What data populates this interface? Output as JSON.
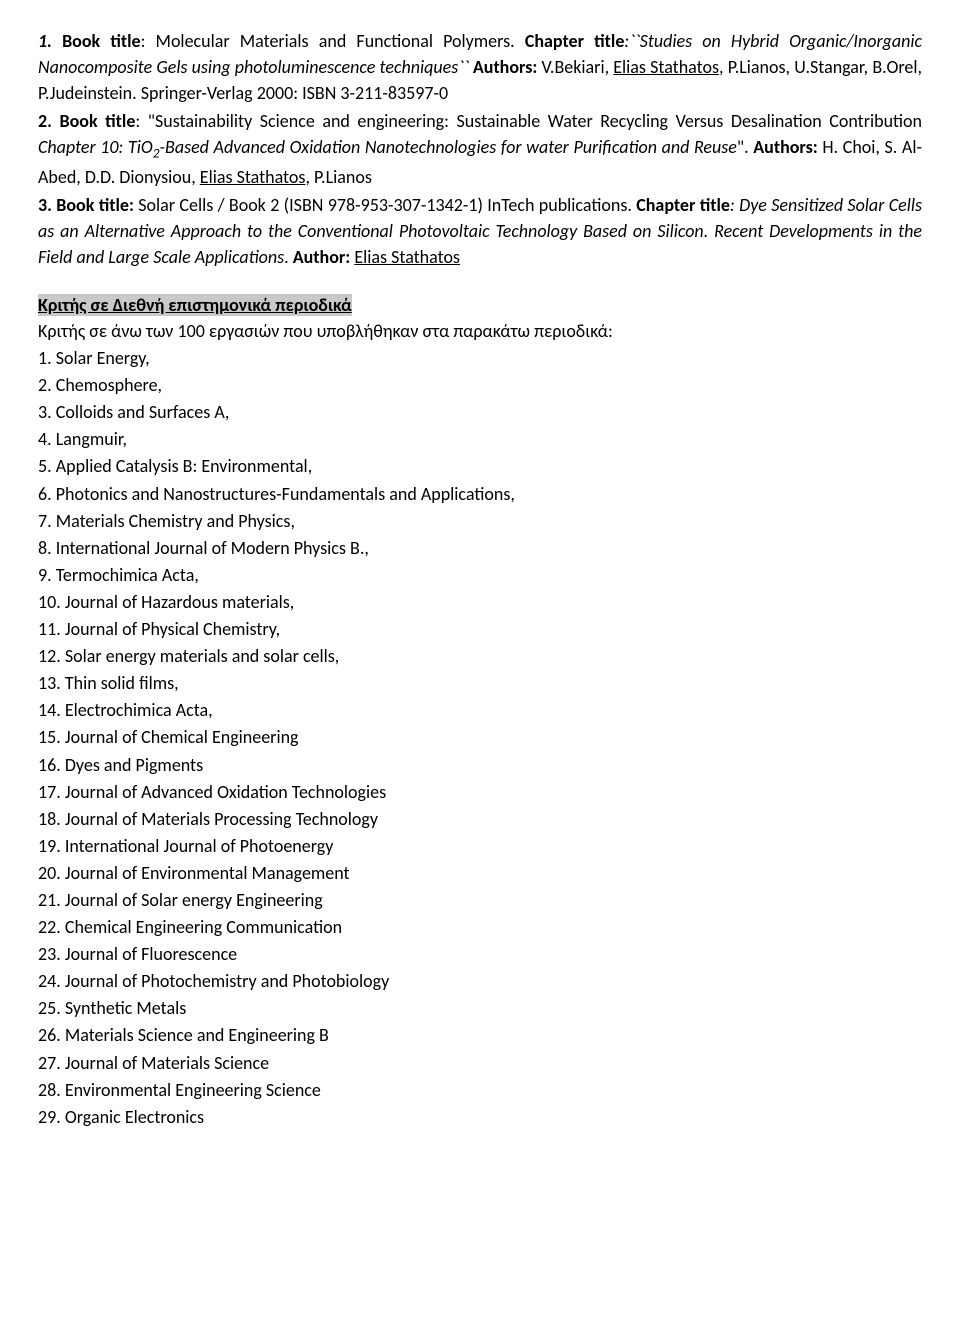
{
  "books": {
    "b1": {
      "num": "1.",
      "bt_label": "Book title",
      "bt_val": ": Molecular Materials and Functional Polymers. ",
      "ct_label": "Chapter title",
      "ct_val": ":``Studies on Hybrid Organic/Inorganic Nanocomposite Gels using photoluminescence  techniques`` ",
      "au_label": "Authors:",
      "au_before": " V.Bekiari, ",
      "au_under": "Elias Stathatos",
      "au_after": ", P.Lianos, U.Stangar, B.Orel, P.Judeinstein. Springer-Verlag 2000: ISBN 3-211-83597-0"
    },
    "b2": {
      "num": "2.",
      "bt_label": "Book title",
      "bt_val": ": \"Sustainability Science and engineering: Sustainable Water Recycling Versus Desalination Contribution ",
      "ct_val_a": "Chapter 10: TiO",
      "ct_sub": "2",
      "ct_val_b": "-Based Advanced Oxidation Nanotechnologies for water Purification and Reuse",
      "au_plain": "\". ",
      "au_label": "Authors:",
      "au_before": " H. Choi, S. Al-Abed, D.D. Dionysiou, ",
      "au_under": "Elias Stathatos",
      "au_after": ", P.Lianos"
    },
    "b3": {
      "num": "3.",
      "bt_label": "Book title:",
      "bt_val": " Solar Cells / Book 2 (ISBN 978-953-307-1342-1) InTech publications. ",
      "ct_label": "Chapter title",
      "ct_val": ": Dye Sensitized Solar Cells as an Alternative Approach to the Conventional Photovoltaic Technology Based on Silicon. Recent Developments in the Field and Large Scale Applications",
      "au_plain": ". ",
      "au_label": "Author:",
      "au_under": "Elias Stathatos"
    }
  },
  "section": {
    "heading": "Κριτής σε Διεθνή επιστημονικά περιοδικά",
    "intro": "Κριτής σε άνω των 100 εργασιών που υποβλήθηκαν στα παρακάτω περιοδικά:"
  },
  "journals": [
    "1. Solar Energy,",
    "2. Chemosphere,",
    "3. Colloids and Surfaces A,",
    "4. Langmuir,",
    "5. Applied Catalysis B: Environmental,",
    "6. Photonics and Nanostructures-Fundamentals and Applications,",
    "7. Materials Chemistry and Physics,",
    "8. International Journal of Modern Physics B.,",
    "9. Termochimica Acta,",
    "10. Journal of Hazardous materials,",
    "11. Journal of Physical Chemistry,",
    "12. Solar energy materials and solar cells,",
    "13. Thin solid films,",
    "14. Electrochimica Acta,",
    "15. Journal of Chemical Engineering",
    "16. Dyes and Pigments",
    "17. Journal of Advanced Oxidation Technologies",
    "18. Journal of Materials Processing Technology",
    "19. International Journal of Photoenergy",
    "20. Journal of Environmental Management",
    "21. Journal of Solar energy Engineering",
    "22. Chemical Engineering Communication",
    "23. Journal of Fluorescence",
    "24. Journal of Photochemistry and Photobiology",
    "25. Synthetic Metals",
    "26. Materials Science and Engineering B",
    "27. Journal of Materials Science",
    "28. Environmental Engineering Science",
    "29. Organic Electronics"
  ]
}
